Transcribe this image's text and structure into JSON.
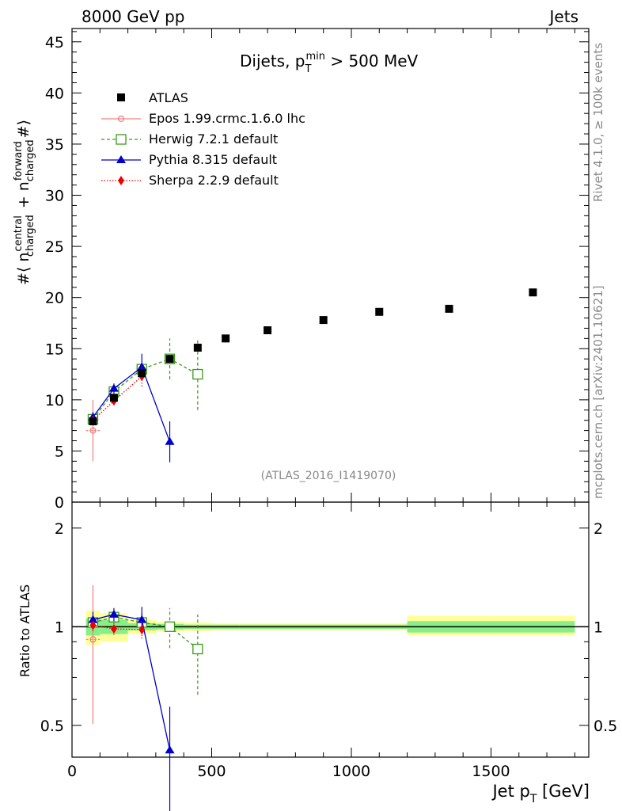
{
  "header": {
    "left": "8000 GeV pp",
    "right": "Jets"
  },
  "side_labels": {
    "rivet": "Rivet 4.1.0, ≥ 100k events",
    "mcplots": "mcplots.cern.ch [arXiv:2401.10621]"
  },
  "colors": {
    "atlas": "#000000",
    "epos": "#f08080",
    "herwig": "#3a9a1a",
    "pythia": "#0000cc",
    "sherpa": "#ee0000",
    "band_yellow": "#ffff99",
    "band_green": "#88ee88"
  },
  "chart_data": [
    {
      "type": "scatter",
      "title": "Dijets, p_T^min > 500 MeV",
      "title_parts": {
        "prefix": "Dijets, p",
        "sub": "T",
        "sup": "min",
        "suffix": " > 500 MeV"
      },
      "ylabel": "#⟨ n_charged^central + n_charged^forward #⟩",
      "ylabel_parts": {
        "a": "#⟨ n",
        "a_sup": "central",
        "a_sub": "charged",
        "b": " + n",
        "b_sup": "forward",
        "b_sub": "charged",
        "c": "#⟩"
      },
      "xlim": [
        0,
        1850
      ],
      "ylim": [
        0,
        46.3
      ],
      "yticks": [
        0,
        5,
        10,
        15,
        20,
        25,
        30,
        35,
        40,
        45
      ],
      "watermark": "(ATLAS_2016_I1419070)",
      "series": [
        {
          "name": "ATLAS",
          "style": "data",
          "x": [
            75,
            150,
            250,
            350,
            450,
            550,
            700,
            900,
            1100,
            1350,
            1650
          ],
          "y": [
            7.9,
            10.2,
            12.6,
            14.0,
            15.1,
            16.0,
            16.8,
            17.8,
            18.6,
            18.9,
            20.5
          ]
        },
        {
          "name": "Epos 1.99.crmc.1.6.0 lhc",
          "style": "epos",
          "x": [
            75
          ],
          "y": [
            7.0
          ],
          "yerr": [
            3.0
          ],
          "xerr": [
            25
          ]
        },
        {
          "name": "Herwig 7.2.1 default",
          "style": "herwig",
          "x": [
            75,
            150,
            250,
            350,
            450
          ],
          "y": [
            8.1,
            10.8,
            13.0,
            14.0,
            12.5
          ],
          "yerr": [
            0.4,
            0.5,
            0.8,
            2.0,
            3.5
          ]
        },
        {
          "name": "Pythia 8.315 default",
          "style": "pythia",
          "x": [
            75,
            150,
            250,
            350
          ],
          "y": [
            8.3,
            11.1,
            13.2,
            5.9
          ],
          "yerr": [
            0.5,
            0.5,
            1.3,
            2.0
          ]
        },
        {
          "name": "Sherpa 2.2.9 default",
          "style": "sherpa",
          "x": [
            75,
            150,
            250
          ],
          "y": [
            8.0,
            9.9,
            12.3
          ],
          "yerr": [
            0.4,
            0.4,
            1.0
          ]
        }
      ]
    },
    {
      "type": "scatter",
      "ylabel": "Ratio to ATLAS",
      "xlabel": "Jet p_T [GeV]",
      "xlabel_parts": {
        "a": "Jet p",
        "sub": "T",
        "b": " [GeV]"
      },
      "xlim": [
        0,
        1850
      ],
      "ylim": [
        0.4,
        2.4
      ],
      "log_y": true,
      "yticks": [
        0.5,
        1,
        2
      ],
      "ytick_labels": [
        "0.5",
        "1",
        "2"
      ],
      "xticks": [
        0,
        500,
        1000,
        1500
      ],
      "xtick_labels": [
        "0",
        "500",
        "1000",
        "1500"
      ],
      "bands": [
        {
          "x0": 50,
          "x1": 100,
          "yellow": [
            0.88,
            1.12
          ],
          "green": [
            0.94,
            1.06
          ]
        },
        {
          "x0": 100,
          "x1": 200,
          "yellow": [
            0.9,
            1.1
          ],
          "green": [
            0.95,
            1.05
          ]
        },
        {
          "x0": 200,
          "x1": 300,
          "yellow": [
            0.95,
            1.05
          ],
          "green": [
            0.975,
            1.025
          ]
        },
        {
          "x0": 300,
          "x1": 400,
          "yellow": [
            0.965,
            1.035
          ],
          "green": [
            0.98,
            1.02
          ]
        },
        {
          "x0": 400,
          "x1": 500,
          "yellow": [
            0.97,
            1.03
          ],
          "green": [
            0.985,
            1.015
          ]
        },
        {
          "x0": 500,
          "x1": 600,
          "yellow": [
            0.975,
            1.025
          ],
          "green": [
            0.985,
            1.015
          ]
        },
        {
          "x0": 600,
          "x1": 800,
          "yellow": [
            0.975,
            1.025
          ],
          "green": [
            0.985,
            1.015
          ]
        },
        {
          "x0": 800,
          "x1": 1000,
          "yellow": [
            0.975,
            1.025
          ],
          "green": [
            0.985,
            1.015
          ]
        },
        {
          "x0": 1000,
          "x1": 1200,
          "yellow": [
            0.975,
            1.025
          ],
          "green": [
            0.985,
            1.015
          ]
        },
        {
          "x0": 1200,
          "x1": 1500,
          "yellow": [
            0.94,
            1.08
          ],
          "green": [
            0.96,
            1.04
          ]
        },
        {
          "x0": 1500,
          "x1": 1800,
          "yellow": [
            0.94,
            1.08
          ],
          "green": [
            0.96,
            1.04
          ]
        }
      ],
      "series": [
        {
          "name": "Epos 1.99.crmc.1.6.0 lhc",
          "style": "epos",
          "x": [
            75
          ],
          "y": [
            0.915
          ],
          "yerr_lo": [
            0.41
          ],
          "yerr_hi": [
            0.425
          ],
          "xerr": [
            25
          ]
        },
        {
          "name": "Herwig 7.2.1 default",
          "style": "herwig",
          "x": [
            75,
            150,
            250,
            350,
            450
          ],
          "y": [
            1.03,
            1.07,
            1.03,
            1.0,
            0.855
          ],
          "yerr_lo": [
            0.05,
            0.05,
            0.07,
            0.14,
            0.235
          ],
          "yerr_hi": [
            0.05,
            0.05,
            0.07,
            0.14,
            0.235
          ]
        },
        {
          "name": "Pythia 8.315 default",
          "style": "pythia",
          "x": [
            75,
            150,
            250,
            350
          ],
          "y": [
            1.05,
            1.09,
            1.05,
            0.42
          ],
          "yerr_lo": [
            0.06,
            0.05,
            0.1,
            0.15
          ],
          "yerr_hi": [
            0.06,
            0.05,
            0.1,
            0.15
          ]
        },
        {
          "name": "Sherpa 2.2.9 default",
          "style": "sherpa",
          "x": [
            75,
            150,
            250
          ],
          "y": [
            1.01,
            0.985,
            0.98
          ],
          "yerr_lo": [
            0.04,
            0.04,
            0.06
          ],
          "yerr_hi": [
            0.04,
            0.04,
            0.06
          ]
        }
      ]
    }
  ]
}
